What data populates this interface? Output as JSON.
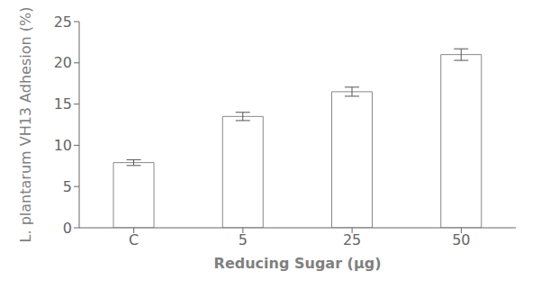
{
  "chart_data": {
    "type": "bar",
    "xlabel": "Reducing Sugar (μg)",
    "ylabel": "L. plantarum VH13 Adhesion (%)",
    "categories": [
      "C",
      "5",
      "25",
      "50"
    ],
    "values": [
      7.9,
      13.5,
      16.5,
      21.0
    ],
    "errors": [
      0.35,
      0.5,
      0.55,
      0.7
    ],
    "color": "#ffffff",
    "ylim": [
      0,
      25
    ],
    "yticks": [
      0,
      5,
      10,
      15,
      20,
      25
    ],
    "grid": false
  }
}
